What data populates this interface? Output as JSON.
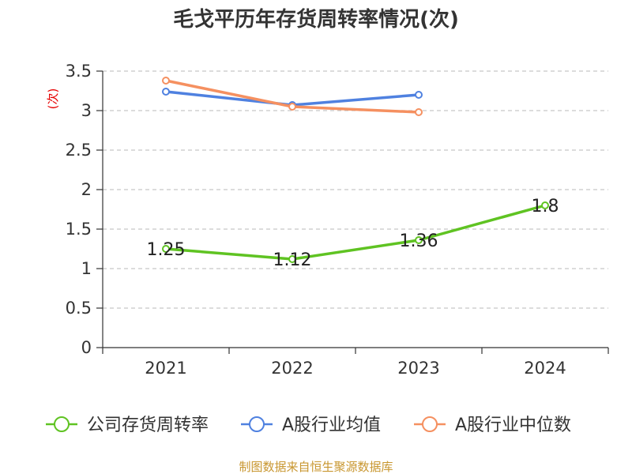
{
  "chart_data": {
    "type": "line",
    "title": "毛戈平历年存货周转率情况(次)",
    "ylabel": "(次)",
    "xlabel": "",
    "categories": [
      "2021",
      "2022",
      "2023",
      "2024"
    ],
    "ylim": [
      0,
      3.5
    ],
    "yticks": [
      "0",
      "0.5",
      "1",
      "1.5",
      "2",
      "2.5",
      "3",
      "3.5"
    ],
    "series": [
      {
        "name": "公司存货周转率",
        "color": "#5fc322",
        "values": [
          1.25,
          1.12,
          1.36,
          1.8
        ],
        "labels": [
          "1.25",
          "1.12",
          "1.36",
          "1.8"
        ]
      },
      {
        "name": "A股行业均值",
        "color": "#4f81e0",
        "values": [
          3.24,
          3.07,
          3.2,
          null
        ]
      },
      {
        "name": "A股行业中位数",
        "color": "#f59060",
        "values": [
          3.38,
          3.05,
          2.98,
          null
        ]
      }
    ],
    "grid": true,
    "legend_position": "bottom"
  },
  "source": "制图数据来自恒生聚源数据库"
}
